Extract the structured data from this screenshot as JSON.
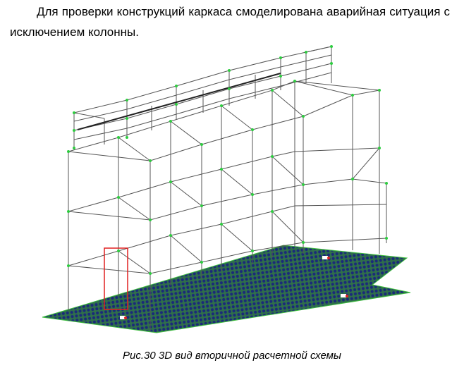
{
  "document": {
    "paragraph": "Для проверки конструкций каркаса смоделирована аварийная ситуация с исключением колонны.",
    "caption": "Рис.30 3D вид вторичной расчетной схемы"
  },
  "colors": {
    "frame": "#555555",
    "node": "#2ecc40",
    "mesh_blue": "#1b2a7a",
    "mesh_green": "#3fbf3f",
    "highlight": "#e02020"
  }
}
